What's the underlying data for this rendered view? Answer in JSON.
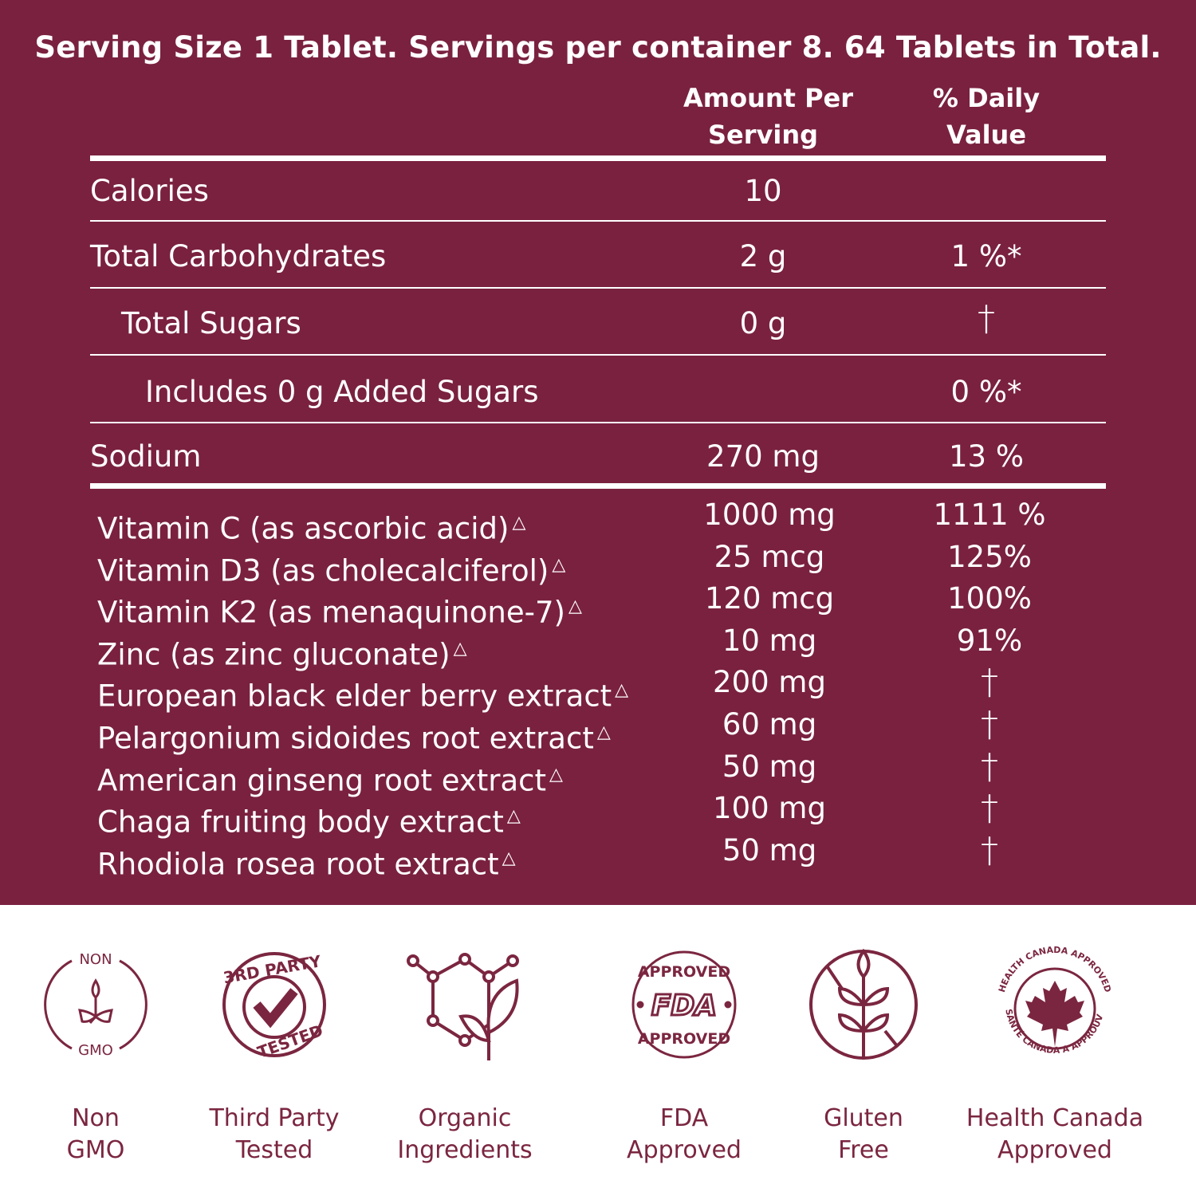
{
  "header": {
    "title": "Serving Size 1 Tablet. Servings per container 8. 64 Tablets in Total.",
    "col_amount_line1": "Amount Per",
    "col_amount_line2": "Serving",
    "col_dv_line1": "% Daily",
    "col_dv_line2": "Value"
  },
  "rows": [
    {
      "name": "Calories",
      "amount": "10",
      "dv": ""
    },
    {
      "name": "Total Carbohydrates",
      "amount": "2 g",
      "dv": "1 %*"
    },
    {
      "name": "Total Sugars",
      "amount": "0 g",
      "dv": "†"
    },
    {
      "name": "Includes 0 g Added Sugars",
      "amount": "",
      "dv": "0 %*"
    },
    {
      "name": "Sodium",
      "amount": "270 mg",
      "dv": "13 %"
    }
  ],
  "ingredients": [
    {
      "name": "Vitamin C (as ascorbic acid)",
      "mark": "△",
      "amount": "1000 mg",
      "dv": "1111 %"
    },
    {
      "name": "Vitamin D3 (as cholecalciferol)",
      "mark": "△",
      "amount": "25 mcg",
      "dv": "125%"
    },
    {
      "name": "Vitamin K2 (as menaquinone-7)",
      "mark": "△",
      "amount": "120 mcg",
      "dv": "100%"
    },
    {
      "name": "Zinc (as zinc gluconate)",
      "mark": "△",
      "amount": "10 mg",
      "dv": "91%"
    },
    {
      "name": "European black elder berry extract",
      "mark": "△",
      "amount": "200 mg",
      "dv": "†"
    },
    {
      "name": "Pelargonium sidoides root extract",
      "mark": "△",
      "amount": "60 mg",
      "dv": "†"
    },
    {
      "name": "American ginseng root extract",
      "mark": "△",
      "amount": "50 mg",
      "dv": "†"
    },
    {
      "name": "Chaga fruiting body extract",
      "mark": "△",
      "amount": "100 mg",
      "dv": "†"
    },
    {
      "name": "Rhodiola rosea root extract",
      "mark": "△",
      "amount": "50 mg",
      "dv": "†"
    }
  ],
  "badges": [
    {
      "line1": "Non",
      "line2": "GMO",
      "icon": "non-gmo-icon",
      "seal_top": "NON",
      "seal_bottom": "GMO"
    },
    {
      "line1": "Third Party",
      "line2": "Tested",
      "icon": "third-party-tested-icon",
      "seal_top": "3RD PARTY",
      "seal_bottom": "TESTED"
    },
    {
      "line1": "Organic",
      "line2": "Ingredients",
      "icon": "organic-molecule-leaf-icon"
    },
    {
      "line1": "FDA",
      "line2": "Approved",
      "icon": "fda-approved-icon",
      "seal_top": "APPROVED",
      "seal_mid": "FDA",
      "seal_bottom": "APPROVED"
    },
    {
      "line1": "Gluten",
      "line2": "Free",
      "icon": "gluten-free-icon"
    },
    {
      "line1": "Health Canada",
      "line2": "Approved",
      "icon": "health-canada-icon",
      "seal_top": "HEALTH CANADA APPROVED",
      "seal_bottom": "SANTÉ CANADA A APPROUVÉ"
    }
  ],
  "colors": {
    "panel": "#7a2140",
    "icon": "#7b2640",
    "text": "#ffffff"
  }
}
